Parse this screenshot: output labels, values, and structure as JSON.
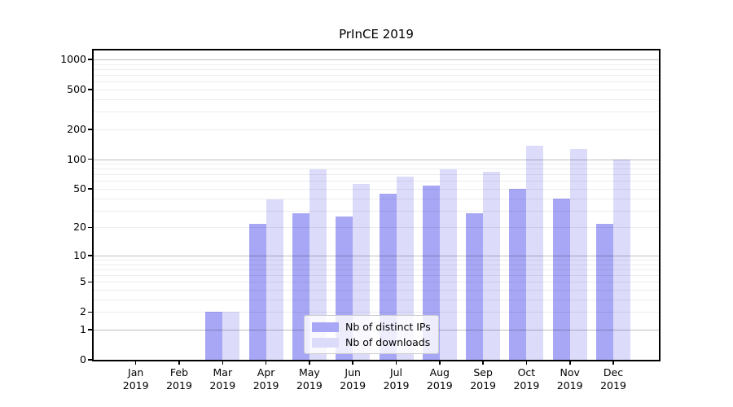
{
  "chart_data": {
    "type": "bar",
    "title": "PrInCE 2019",
    "categories": [
      "Jan 2019",
      "Feb 2019",
      "Mar 2019",
      "Apr 2019",
      "May 2019",
      "Jun 2019",
      "Jul 2019",
      "Aug 2019",
      "Sep 2019",
      "Oct 2019",
      "Nov 2019",
      "Dec 2019"
    ],
    "series": [
      {
        "name": "Nb of distinct IPs",
        "key": "distinct-ips",
        "color": "#a7a7f5",
        "values": [
          0,
          0,
          2,
          22,
          28,
          26,
          45,
          54,
          28,
          50,
          40,
          22
        ]
      },
      {
        "name": "Nb of downloads",
        "key": "downloads",
        "color": "#dcdcfa",
        "values": [
          0,
          0,
          2,
          39,
          79,
          56,
          66,
          79,
          75,
          136,
          126,
          100
        ]
      }
    ],
    "xlabel": "",
    "ylabel": "",
    "yscale": "log1p",
    "ylim": [
      0,
      1270
    ],
    "y_ticks": [
      1000,
      500,
      200,
      100,
      50,
      20,
      10,
      5,
      2,
      1,
      0
    ],
    "grid": "on",
    "grid_major_values": [
      1,
      10,
      100,
      1000
    ],
    "grid_minor_values": [
      2,
      3,
      4,
      5,
      6,
      7,
      8,
      9,
      20,
      30,
      40,
      50,
      60,
      70,
      80,
      90,
      200,
      300,
      400,
      500,
      600,
      700,
      800,
      900
    ],
    "legend_position": "lower center",
    "colors": {
      "axis": "#000000",
      "background": "#ffffff",
      "grid_major": "rgba(0,0,0,0.25)",
      "grid_minor": "rgba(0,0,0,0.07)"
    }
  }
}
